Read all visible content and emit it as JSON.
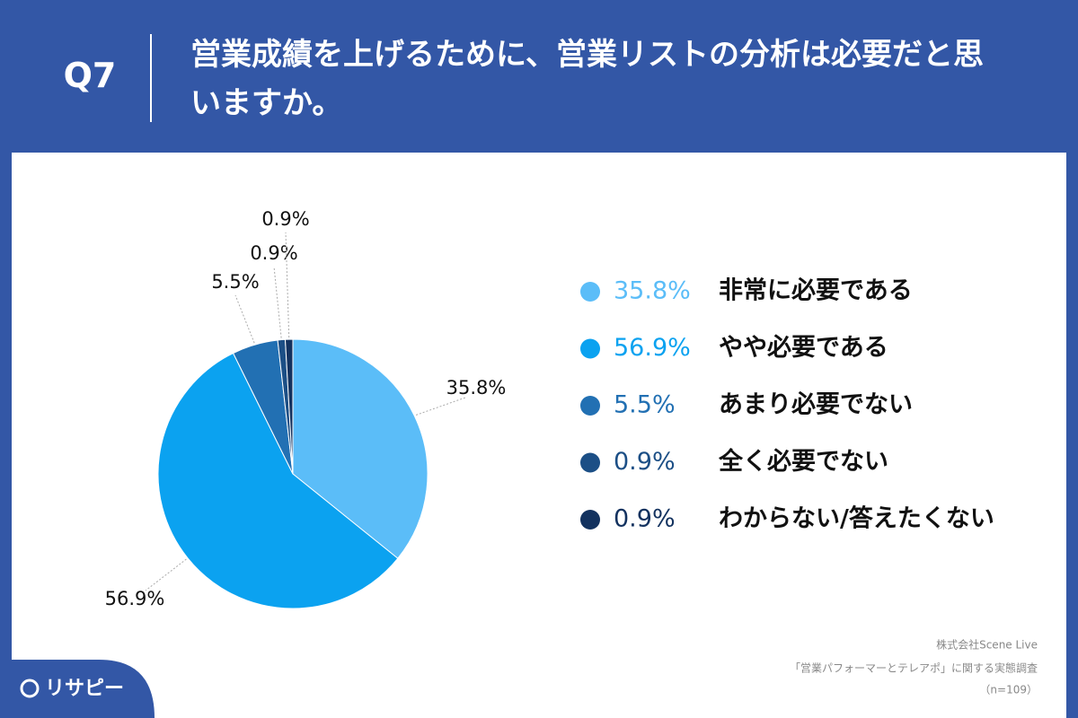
{
  "question": "Q7",
  "chart_data": {
    "type": "pie",
    "title": "営業成績を上げるために、営業リストの分析は必要だと思いますか。",
    "categories": [
      "非常に必要である",
      "やや必要である",
      "あまり必要でない",
      "全く必要でない",
      "わからない/答えたくない"
    ],
    "values": [
      35.8,
      56.9,
      5.5,
      0.9,
      0.9
    ],
    "value_labels": [
      "35.8%",
      "56.9%",
      "5.5%",
      "0.9%",
      "0.9%"
    ],
    "colors": [
      "#5bbdf8",
      "#0ba2f0",
      "#2270b3",
      "#1c4f86",
      "#13325f"
    ]
  },
  "source": [
    "株式会社Scene Live",
    "「営業パフォーマーとテレアポ」に関する実態調査",
    "（n=109）"
  ],
  "logo": "リサピー"
}
